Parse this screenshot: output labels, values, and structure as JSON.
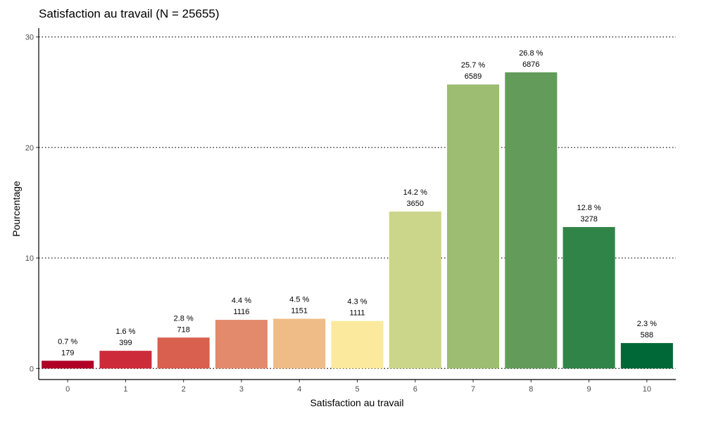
{
  "chart_data": {
    "type": "bar",
    "title": "Satisfaction au travail (N = 25655)",
    "xlabel": "Satisfaction au travail",
    "ylabel": "Pourcentage",
    "ylim": [
      -1.0,
      30.8
    ],
    "yticks": [
      0,
      10,
      20,
      30
    ],
    "grid": "horizontal dotted",
    "legend": "none",
    "categories": [
      "0",
      "1",
      "2",
      "3",
      "4",
      "5",
      "6",
      "7",
      "8",
      "9",
      "10"
    ],
    "values": [
      0.7,
      1.6,
      2.8,
      4.4,
      4.5,
      4.3,
      14.2,
      25.7,
      26.8,
      12.8,
      2.3
    ],
    "percent_labels": [
      "0.7 %",
      "1.6 %",
      "2.8 %",
      "4.4 %",
      "4.5 %",
      "4.3 %",
      "14.2 %",
      "25.7 %",
      "26.8 %",
      "12.8 %",
      "2.3 %"
    ],
    "counts": [
      "179",
      "399",
      "718",
      "1116",
      "1151",
      "1111",
      "3650",
      "6589",
      "6876",
      "3278",
      "588"
    ],
    "colors": [
      "#b10026",
      "#cd2b3a",
      "#d9604f",
      "#e38a6d",
      "#efbc87",
      "#fbe99e",
      "#ccd68a",
      "#9cbd72",
      "#639c5a",
      "#318447",
      "#006837"
    ]
  }
}
